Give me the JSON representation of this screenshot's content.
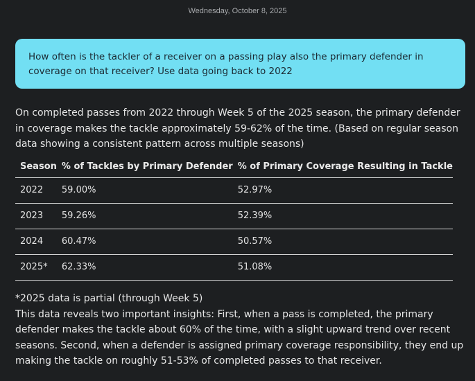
{
  "conversation": {
    "date": "Wednesday, October 8, 2025",
    "user_message": "How often is the tackler of a receiver on a passing play also the primary defender in coverage on that receiver? Use data going back to 2022",
    "response": {
      "intro": "On completed passes from 2022 through Week 5 of the 2025 season, the primary defender in coverage makes the tackle approximately 59-62% of the time. (Based on regular season data showing a consistent pattern across multiple seasons)",
      "table": {
        "headers": [
          "Season",
          "% of Tackles by Primary Defender",
          "% of Primary Coverage Resulting in Tackle"
        ],
        "rows": [
          [
            "2022",
            "59.00%",
            "52.97%"
          ],
          [
            "2023",
            "59.26%",
            "52.39%"
          ],
          [
            "2024",
            "60.47%",
            "50.57%"
          ],
          [
            "2025*",
            "62.33%",
            "51.08%"
          ]
        ]
      },
      "footnote": "*2025 data is partial (through Week 5)",
      "insights": "This data reveals two important insights: First, when a pass is completed, the primary defender makes the tackle about 60% of the time, with a slight upward trend over recent seasons. Second, when a defender is assigned primary coverage responsibility, they end up making the tackle on roughly 51-53% of completed passes to that receiver."
    }
  }
}
